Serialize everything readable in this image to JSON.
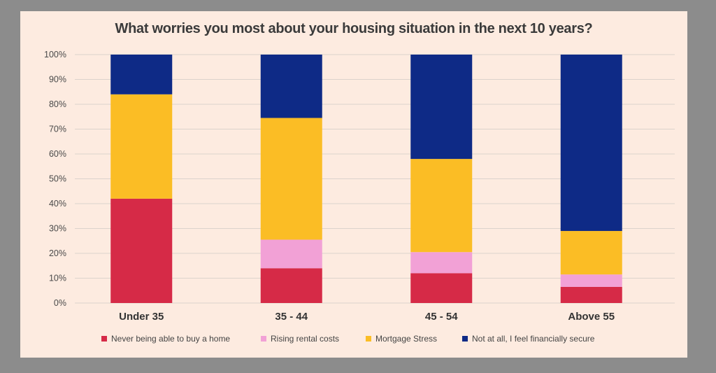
{
  "chart_data": {
    "type": "bar",
    "stacked": true,
    "title": "What worries you most about your housing situation in the next 10 years?",
    "xlabel": "",
    "ylabel": "",
    "ylim": [
      0,
      100
    ],
    "y_ticks": [
      "0%",
      "10%",
      "20%",
      "30%",
      "40%",
      "50%",
      "60%",
      "70%",
      "80%",
      "90%",
      "100%"
    ],
    "grid": true,
    "legend_position": "bottom",
    "categories": [
      "Under 35",
      "35 - 44",
      "45 - 54",
      "Above 55"
    ],
    "series": [
      {
        "name": "Never being able to buy a home",
        "color": "#d62a47",
        "values": [
          42,
          14,
          12,
          6.5
        ]
      },
      {
        "name": "Rising rental costs",
        "color": "#f2a1d6",
        "values": [
          0,
          11.5,
          8.5,
          5
        ]
      },
      {
        "name": "Mortgage Stress",
        "color": "#fbbd25",
        "values": [
          42,
          49,
          37.5,
          17.5
        ]
      },
      {
        "name": "Not at all, I feel financially secure",
        "color": "#0e2a86",
        "values": [
          16,
          25.5,
          42,
          71
        ]
      }
    ]
  }
}
